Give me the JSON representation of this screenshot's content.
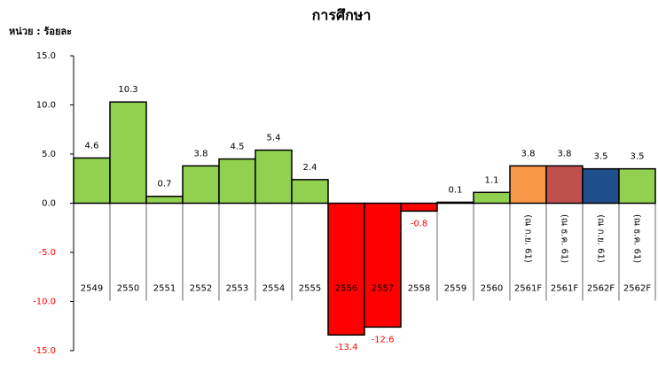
{
  "chart_data": {
    "type": "bar",
    "title": "การศึกษา",
    "unit_label": "หน่วย : ร้อยละ",
    "categories": [
      "2549",
      "2550",
      "2551",
      "2552",
      "2553",
      "2554",
      "2555",
      "2556",
      "2557",
      "2558",
      "2559",
      "2560",
      "2561F",
      "2561F",
      "2562F",
      "2562F"
    ],
    "category_notes": [
      null,
      null,
      null,
      null,
      null,
      null,
      null,
      null,
      null,
      null,
      null,
      null,
      "(ณ ก.ย. 61)",
      "(ณ ธ.ค. 61)",
      "(ณ ก.ย. 61)",
      "(ณ ธ.ค. 61)"
    ],
    "values": [
      4.6,
      10.3,
      0.7,
      3.8,
      4.5,
      5.4,
      2.4,
      -13.4,
      -12.6,
      -0.8,
      0.1,
      1.1,
      3.8,
      3.8,
      3.5,
      3.5
    ],
    "colors": [
      "#92d050",
      "#92d050",
      "#92d050",
      "#92d050",
      "#92d050",
      "#92d050",
      "#92d050",
      "#ff0000",
      "#ff0000",
      "#ff0000",
      "#92d050",
      "#92d050",
      "#f79646",
      "#c0504d",
      "#1f4e8c",
      "#92d050"
    ],
    "negative_label_color": "#ff0000",
    "ylim": [
      -15,
      15
    ],
    "yticks": [
      {
        "value": -15,
        "label": "-15.0"
      },
      {
        "value": -10,
        "label": "-10.0"
      },
      {
        "value": -5,
        "label": "-5.0"
      },
      {
        "value": 0,
        "label": "0.0"
      },
      {
        "value": 5,
        "label": "5.0"
      },
      {
        "value": 10,
        "label": "10.0"
      },
      {
        "value": 15,
        "label": "15.0"
      }
    ],
    "grid": false
  }
}
